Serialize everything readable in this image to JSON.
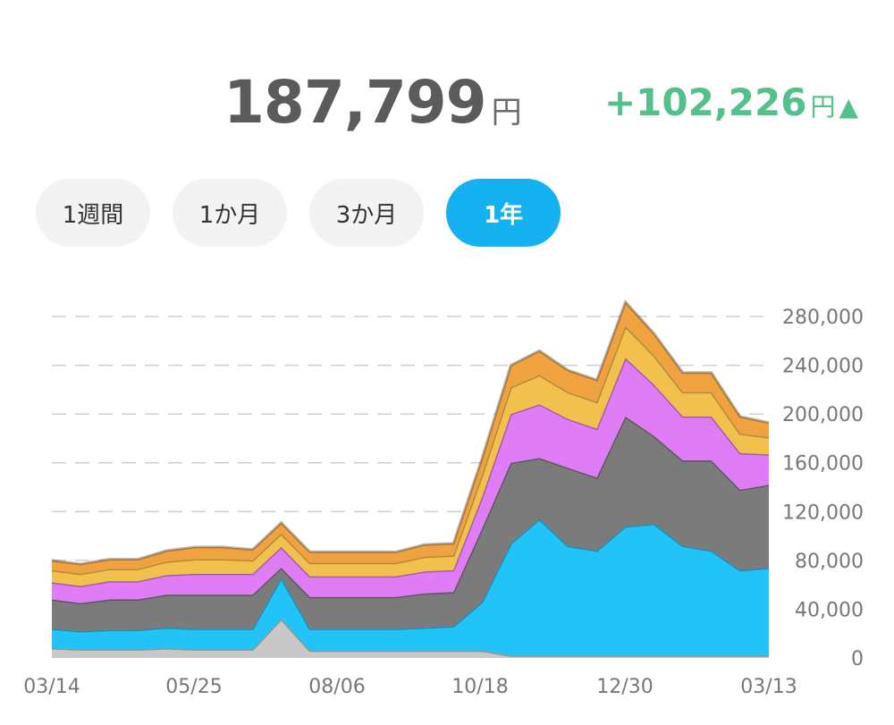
{
  "summary": {
    "total_value": "187,799",
    "total_unit": "円",
    "change_value": "+102,226",
    "change_unit": "円",
    "change_arrow": "▲",
    "change_color": "#54c08a"
  },
  "range_tabs": [
    {
      "label": "1週間",
      "active": false
    },
    {
      "label": "1か月",
      "active": false
    },
    {
      "label": "3か月",
      "active": false
    },
    {
      "label": "1年",
      "active": true
    }
  ],
  "chart_data": {
    "type": "area",
    "stacked": true,
    "title": "",
    "xlabel": "",
    "ylabel": "",
    "ylim": [
      0,
      280000
    ],
    "y_ticks": [
      0,
      40000,
      80000,
      120000,
      160000,
      200000,
      240000,
      280000
    ],
    "y_tick_labels": [
      "0",
      "40,000",
      "80,000",
      "120,000",
      "160,000",
      "200,000",
      "240,000",
      "280,000"
    ],
    "y_axis_position": "right",
    "grid": "dashed-horizontal",
    "x_tick_labels": [
      "03/14",
      "05/25",
      "08/06",
      "10/18",
      "12/30",
      "03/13"
    ],
    "x": [
      0,
      4,
      8,
      12,
      16,
      20,
      24,
      28,
      32,
      36,
      40,
      44,
      48,
      52,
      56,
      60,
      64,
      68,
      72,
      76,
      80,
      84,
      88,
      92,
      96,
      100
    ],
    "series": [
      {
        "color": "#c8c8c8",
        "values": [
          8000,
          7000,
          7000,
          7000,
          8000,
          7000,
          7000,
          7000,
          32000,
          6000,
          6000,
          6000,
          6000,
          6000,
          6000,
          6000,
          2000,
          2000,
          2000,
          2000,
          2000,
          2000,
          2000,
          2000,
          2000,
          2000
        ]
      },
      {
        "color": "#22c4f8",
        "values": [
          16000,
          15000,
          16000,
          16000,
          17000,
          17000,
          17000,
          17000,
          34000,
          18000,
          18000,
          18000,
          18000,
          19000,
          20000,
          40000,
          92000,
          112000,
          90000,
          86000,
          106000,
          108000,
          90000,
          86000,
          70000,
          72000
        ]
      },
      {
        "color": "#7b7b7b",
        "values": [
          24000,
          23000,
          25000,
          25000,
          27000,
          28000,
          28000,
          28000,
          8000,
          26000,
          26000,
          26000,
          26000,
          28000,
          28000,
          60000,
          66000,
          50000,
          64000,
          60000,
          90000,
          72000,
          70000,
          74000,
          66000,
          68000
        ]
      },
      {
        "color": "#e07cf5",
        "values": [
          14000,
          14000,
          15000,
          15000,
          16000,
          17000,
          17000,
          17000,
          17000,
          17000,
          17000,
          17000,
          17000,
          18000,
          18000,
          26000,
          40000,
          44000,
          40000,
          40000,
          48000,
          42000,
          36000,
          36000,
          30000,
          25000
        ]
      },
      {
        "color": "#f2c04d",
        "values": [
          10000,
          10000,
          10000,
          10000,
          11000,
          12000,
          12000,
          11000,
          11000,
          11000,
          11000,
          11000,
          11000,
          12000,
          12000,
          18000,
          22000,
          24000,
          22000,
          22000,
          26000,
          24000,
          20000,
          20000,
          16000,
          14000
        ]
      },
      {
        "color": "#f0a140",
        "values": [
          8000,
          8000,
          8000,
          8000,
          9000,
          10000,
          10000,
          9000,
          9000,
          9000,
          9000,
          9000,
          9000,
          10000,
          10000,
          14000,
          18000,
          20000,
          18000,
          18000,
          20000,
          18000,
          16000,
          16000,
          14000,
          12000
        ]
      }
    ]
  }
}
